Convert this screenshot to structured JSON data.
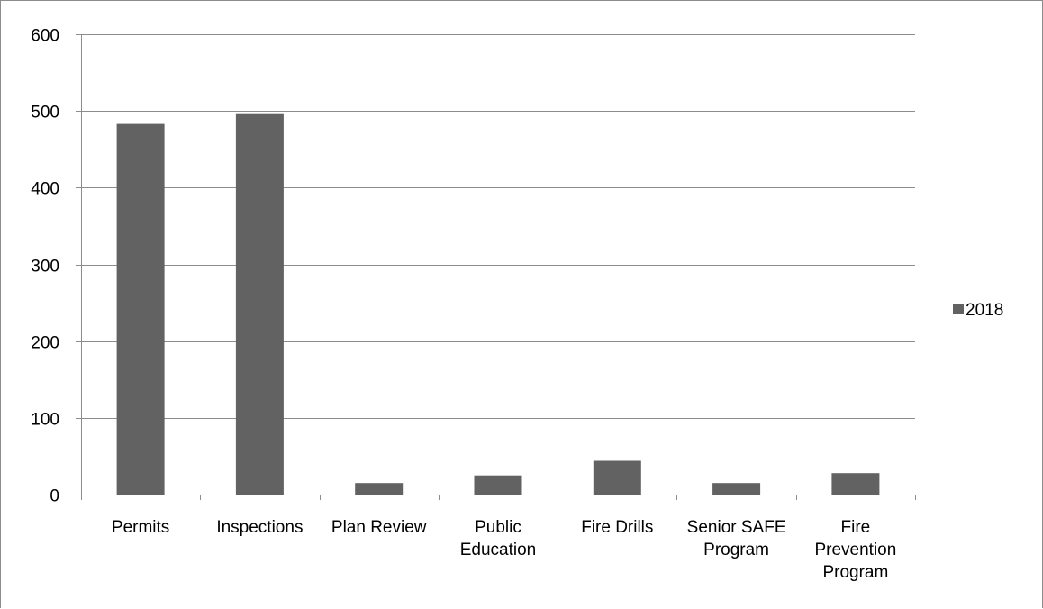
{
  "chart_data": {
    "type": "bar",
    "categories": [
      [
        "Permits"
      ],
      [
        "Inspections"
      ],
      [
        "Plan Review"
      ],
      [
        "Public",
        "Education"
      ],
      [
        "Fire Drills"
      ],
      [
        "Senior SAFE",
        "Program"
      ],
      [
        "Fire",
        "Prevention",
        "Program"
      ]
    ],
    "series": [
      {
        "name": "2018",
        "color": "#626262",
        "values": [
          483,
          497,
          15,
          25,
          44,
          15,
          28
        ]
      }
    ],
    "ylim": [
      0,
      600
    ],
    "yticks": [
      0,
      100,
      200,
      300,
      400,
      500,
      600
    ],
    "grid": true,
    "legend": "right"
  }
}
